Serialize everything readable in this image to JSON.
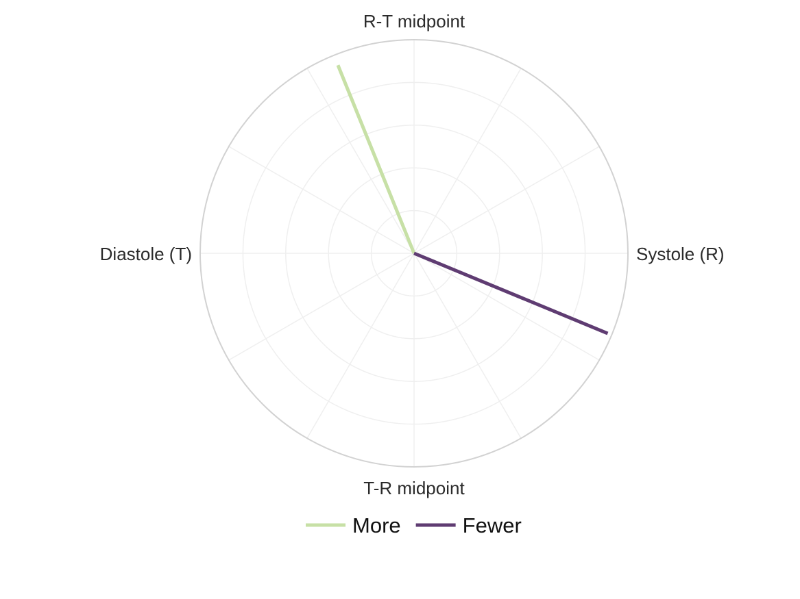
{
  "chart_data": {
    "type": "polar-line",
    "title": "",
    "angular_axis": {
      "direction": "counterclockwise",
      "zero": "right",
      "tick_labels": [
        {
          "angle_deg": 0,
          "text": "Systole (R)"
        },
        {
          "angle_deg": 90,
          "text": "R-T midpoint"
        },
        {
          "angle_deg": 180,
          "text": "Diastole (T)"
        },
        {
          "angle_deg": 270,
          "text": "T-R midpoint"
        }
      ],
      "gridline_angles_deg": [
        0,
        30,
        60,
        90,
        120,
        150,
        180,
        210,
        240,
        270,
        300,
        330
      ]
    },
    "radial_axis": {
      "range": [
        0,
        5
      ],
      "grid_rings": [
        1,
        2,
        3,
        4,
        5
      ],
      "show_tick_labels": false
    },
    "series": [
      {
        "name": "More",
        "color": "#c7e0a6",
        "angle_deg": 112,
        "radius": 4.75
      },
      {
        "name": "Fewer",
        "color": "#5f3c72",
        "angle_deg": -22.5,
        "radius": 4.9
      }
    ],
    "legend": {
      "position": "bottom-center"
    },
    "grid": true
  }
}
